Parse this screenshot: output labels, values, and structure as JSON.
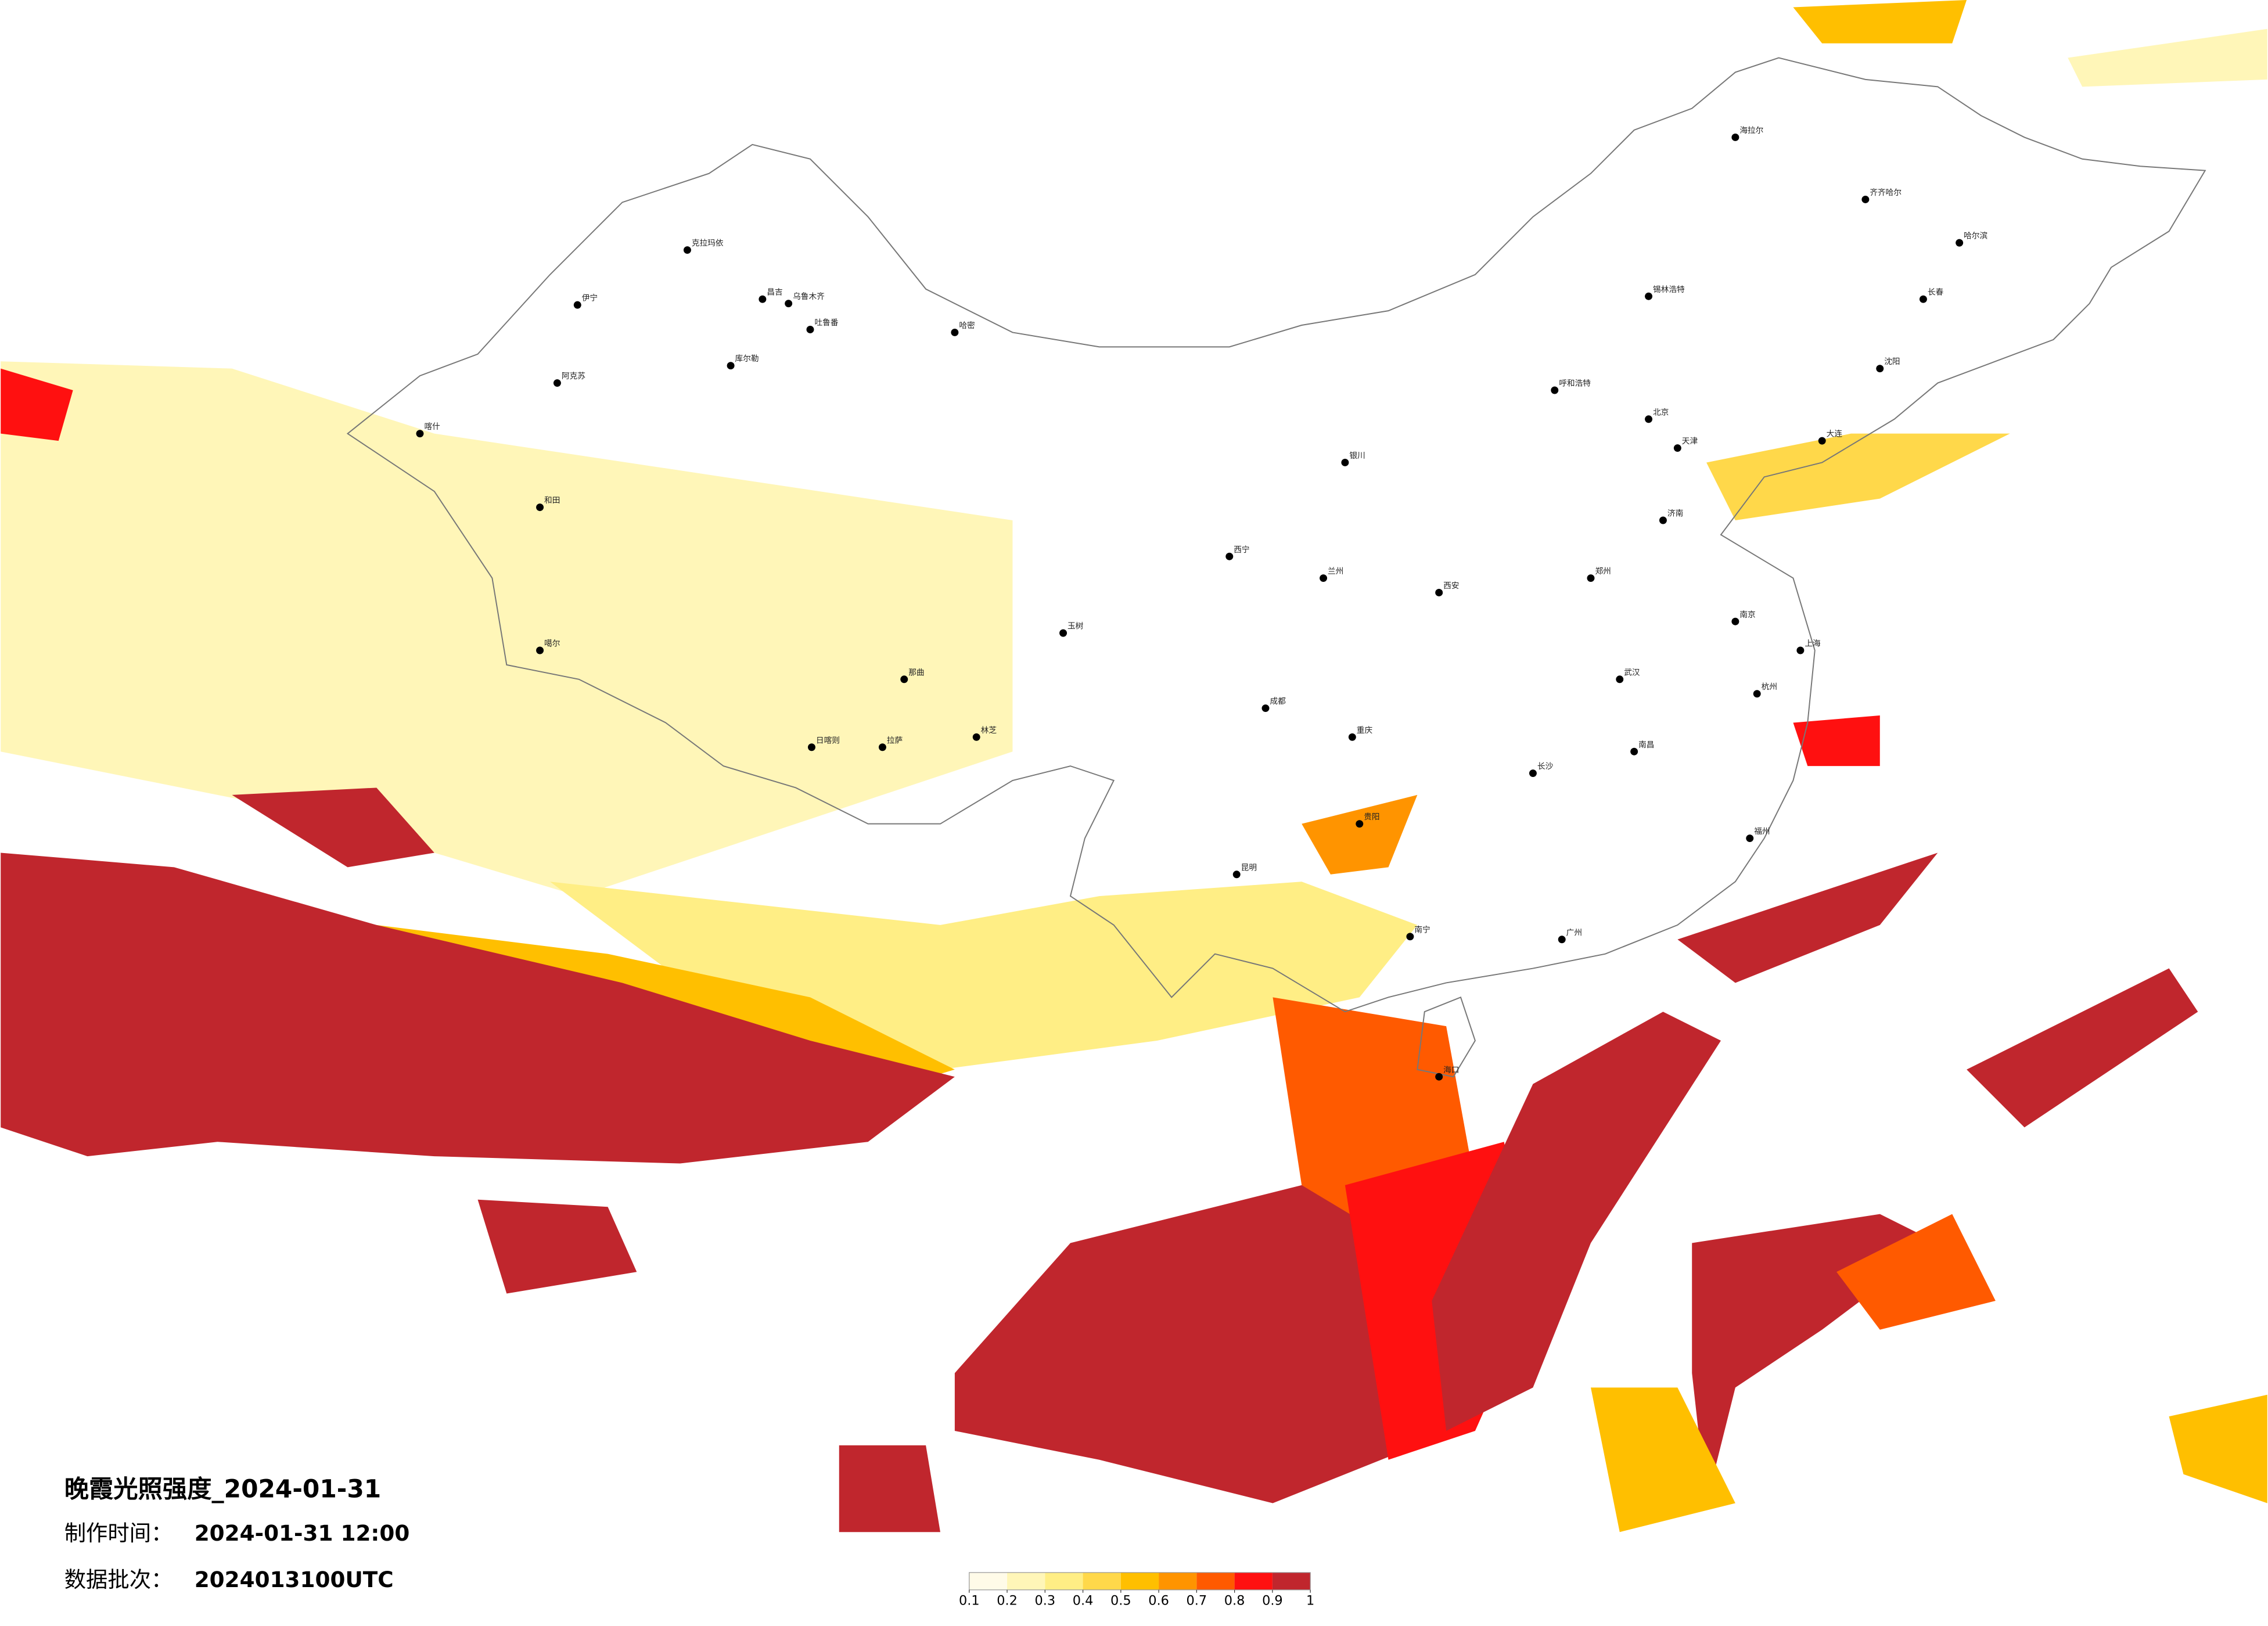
{
  "map": {
    "title": "晚霞光照强度_2024-01-31",
    "made_label": "制作时间：",
    "made_time": "2024-01-31 12:00",
    "batch_label": "数据批次：",
    "batch": "2024013100UTC",
    "colorbar": {
      "colors": [
        "#fffbe8",
        "#fff6b8",
        "#ffee85",
        "#ffd84a",
        "#ffbf00",
        "#ff9400",
        "#ff5a00",
        "#ff1010",
        "#c0262d"
      ],
      "ticks": [
        0.1,
        0.2,
        0.3,
        0.4,
        0.5,
        0.6,
        0.7,
        0.8,
        0.9,
        1
      ]
    },
    "cities": [
      "克拉玛依",
      "伊宁",
      "昌吉",
      "乌鲁木齐",
      "吐鲁番",
      "哈密",
      "库尔勒",
      "阿克苏",
      "喀什",
      "和田",
      "噶尔",
      "日喀则",
      "拉萨",
      "林芝",
      "那曲",
      "玉树",
      "西宁",
      "兰州",
      "银川",
      "呼和浩特",
      "北京",
      "天津",
      "哈尔滨",
      "长春",
      "沈阳",
      "大连",
      "济南",
      "郑州",
      "西安",
      "武汉",
      "南京",
      "上海",
      "杭州",
      "长沙",
      "南昌",
      "福州",
      "广州",
      "南宁",
      "昆明",
      "成都",
      "重庆",
      "贵阳",
      "海口",
      "齐齐哈尔",
      "海拉尔",
      "锡林浩特"
    ]
  }
}
